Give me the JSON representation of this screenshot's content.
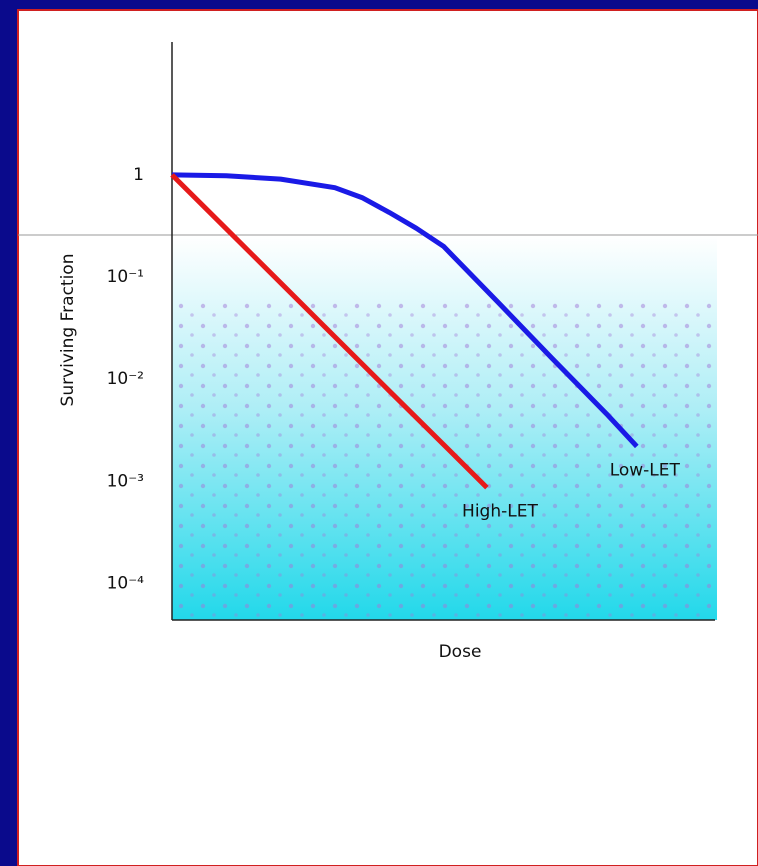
{
  "chart_data": {
    "type": "line",
    "x_label": "Dose",
    "y_label": "Surviving Fraction",
    "log_y": true,
    "xlim": [
      0,
      10
    ],
    "ylim": [
      4.4e-05,
      20
    ],
    "yticks": [
      1,
      {
        "value": 0.1,
        "label": "10⁻¹"
      },
      {
        "value": 0.01,
        "label": "10⁻²"
      },
      {
        "value": 0.001,
        "label": "10⁻³"
      },
      {
        "value": 0.0001,
        "label": "10⁻⁴"
      }
    ],
    "series": [
      {
        "name": "Low-LET",
        "color": "#1a1ae6",
        "x": [
          0,
          1,
          2,
          3,
          3.5,
          4,
          4.5,
          5,
          6,
          7,
          8,
          8.56
        ],
        "values": [
          1,
          0.98,
          0.91,
          0.75,
          0.6,
          0.43,
          0.3,
          0.2,
          0.057,
          0.016,
          0.0046,
          0.0022
        ]
      },
      {
        "name": "High-LET",
        "color": "#e61a1a",
        "x": [
          0,
          1,
          2,
          3,
          4,
          5,
          5.8
        ],
        "values": [
          1,
          0.297,
          0.088,
          0.026,
          0.0077,
          0.0023,
          0.00087
        ]
      }
    ]
  }
}
